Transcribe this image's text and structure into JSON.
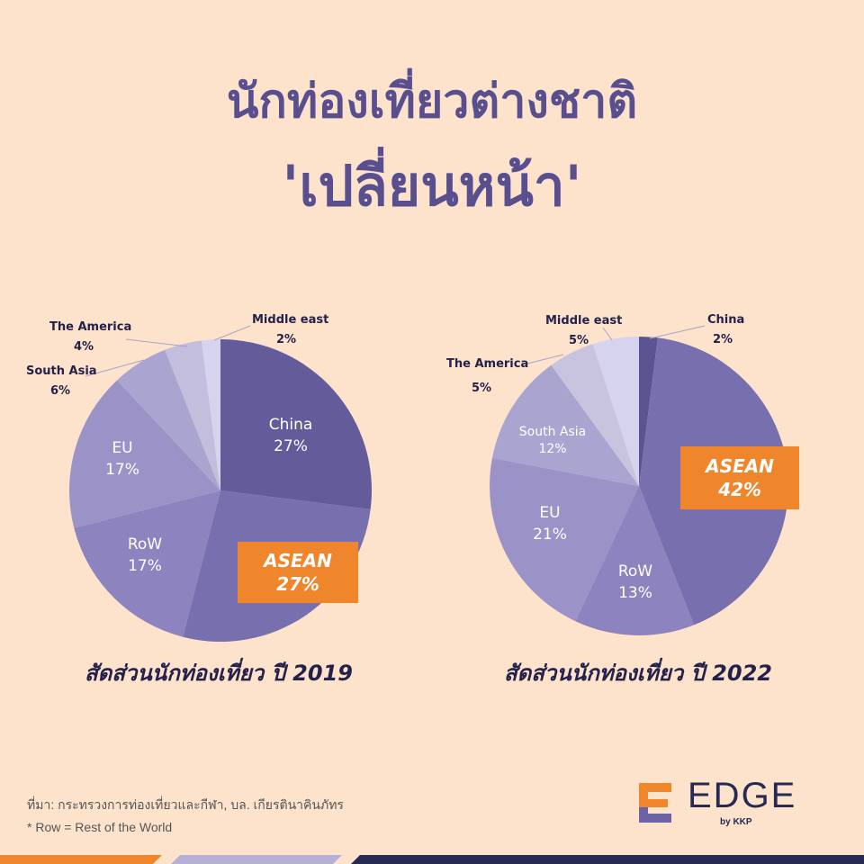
{
  "title_line1": "นักท่องเที่ยวต่างชาติ",
  "title_line2": "'เปลี่ยนหน้า'",
  "chart_data": [
    {
      "type": "pie",
      "title": "สัดส่วนนักท่องเที่ยว ปี 2019",
      "labels": [
        "China",
        "ASEAN",
        "RoW",
        "EU",
        "South Asia",
        "The America",
        "Middle east"
      ],
      "values": [
        27,
        27,
        17,
        17,
        6,
        4,
        2
      ],
      "value_labels": [
        "27%",
        "27%",
        "17%",
        "17%",
        "6%",
        "4%",
        "2%"
      ],
      "colors": [
        "#645b9a",
        "#786fae",
        "#8c83bf",
        "#9b93c8",
        "#aaa4d1",
        "#c3bedd",
        "#d6d3ee"
      ],
      "highlight": "ASEAN"
    },
    {
      "type": "pie",
      "title": "สัดส่วนนักท่องเที่ยว ปี 2022",
      "labels": [
        "China",
        "ASEAN",
        "RoW",
        "EU",
        "South Asia",
        "The America",
        "Middle east"
      ],
      "values": [
        2,
        42,
        13,
        21,
        12,
        5,
        5
      ],
      "value_labels": [
        "2%",
        "42%",
        "13%",
        "21%",
        "12%",
        "5%",
        "5%"
      ],
      "colors": [
        "#5b5494",
        "#786fae",
        "#8c83bf",
        "#9b93c8",
        "#aaa4d1",
        "#c8c4df",
        "#d6d3ee"
      ],
      "highlight": "ASEAN"
    }
  ],
  "source": "ที่มา:  กระทรวงการท่องเที่ยวและกีฬา,  บล. เกียรตินาคินภัทร",
  "note": "* Row = Rest of the World",
  "logo": {
    "word": "EDGE",
    "sub": "by KKP"
  },
  "colors": {
    "background": "#fde3cc",
    "title": "#5a4f8e",
    "highlight": "#f0862c",
    "dark": "#262a52"
  }
}
